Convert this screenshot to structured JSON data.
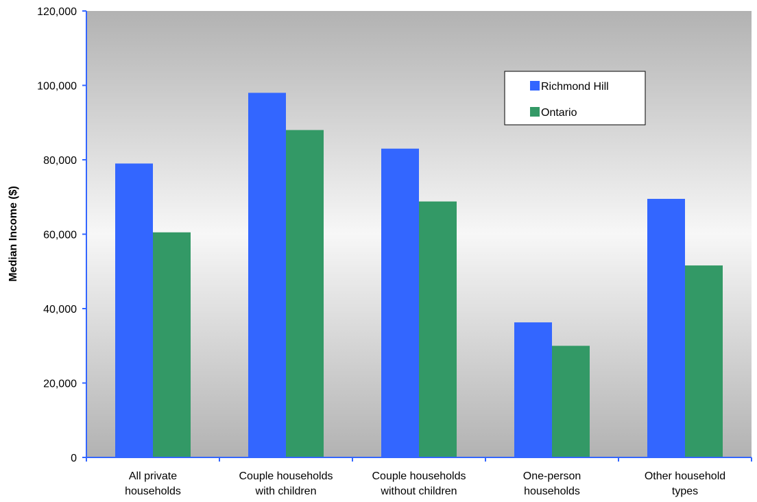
{
  "chart_data": {
    "type": "bar",
    "title": "",
    "xlabel": "",
    "ylabel": "Median Income ($)",
    "ylim": [
      0,
      120000
    ],
    "yticks": [
      0,
      20000,
      40000,
      60000,
      80000,
      100000,
      120000
    ],
    "ytick_labels": [
      "0",
      "20,000",
      "40,000",
      "60,000",
      "80,000",
      "100,000",
      "120,000"
    ],
    "categories": [
      [
        "All private",
        "households"
      ],
      [
        "Couple households",
        "with children"
      ],
      [
        "Couple households",
        "without children"
      ],
      [
        "One-person",
        "households"
      ],
      [
        "Other household",
        "types"
      ]
    ],
    "series": [
      {
        "name": "Richmond Hill",
        "color": "#3366ff",
        "values": [
          79000,
          98000,
          83000,
          36300,
          69500
        ]
      },
      {
        "name": "Ontario",
        "color": "#339966",
        "values": [
          60500,
          88000,
          68800,
          30000,
          51600
        ]
      }
    ],
    "legend": {
      "position": "top-right"
    },
    "grid": false,
    "background": "gradient-gray",
    "axis_color": "#3366ff"
  }
}
